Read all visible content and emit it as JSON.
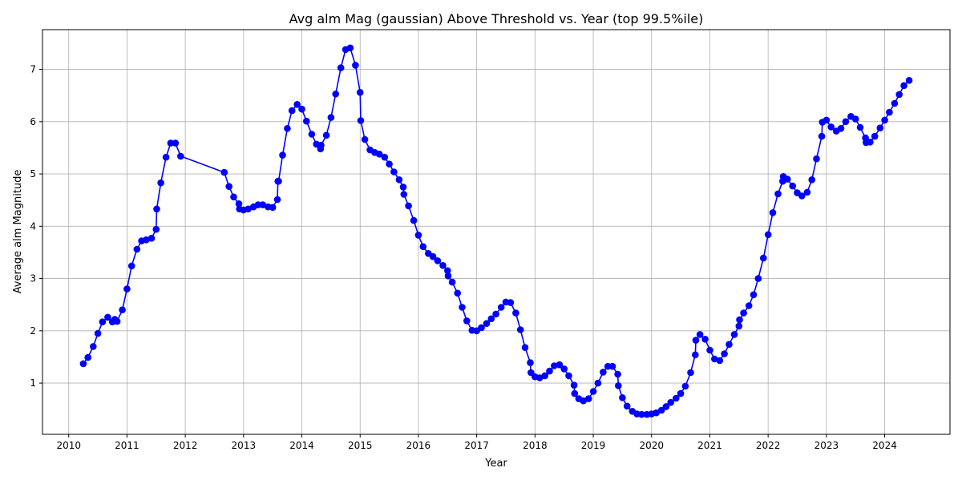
{
  "chart_data": {
    "type": "line",
    "title": "Avg alm Mag (gaussian) Above Threshold vs. Year (top 99.5%ile)",
    "xlabel": "Year",
    "ylabel": "Average alm Magnitude",
    "xlim": [
      2009.55,
      2025.12
    ],
    "ylim": [
      0.02,
      7.76
    ],
    "xticks": [
      2010,
      2011,
      2012,
      2013,
      2014,
      2015,
      2016,
      2017,
      2018,
      2019,
      2020,
      2021,
      2022,
      2023,
      2024
    ],
    "xtick_labels": [
      "2010",
      "2011",
      "2012",
      "2013",
      "2014",
      "2015",
      "2016",
      "2017",
      "2018",
      "2019",
      "2020",
      "2021",
      "2022",
      "2023",
      "2024"
    ],
    "yticks": [
      1,
      2,
      3,
      4,
      5,
      6,
      7
    ],
    "ytick_labels": [
      "1",
      "2",
      "3",
      "4",
      "5",
      "6",
      "7"
    ],
    "grid": true,
    "color": "#0000ff",
    "marker": "circle",
    "series": [
      {
        "name": "",
        "x": [
          2010.25,
          2010.33,
          2010.42,
          2010.5,
          2010.58,
          2010.67,
          2010.75,
          2010.79,
          2010.83,
          2010.92,
          2011.0,
          2011.08,
          2011.17,
          2011.25,
          2011.33,
          2011.42,
          2011.5,
          2011.51,
          2011.58,
          2011.67,
          2011.75,
          2011.83,
          2011.92,
          2012.67,
          2012.75,
          2012.83,
          2012.92,
          2012.93,
          2013.0,
          2013.08,
          2013.17,
          2013.25,
          2013.33,
          2013.42,
          2013.5,
          2013.58,
          2013.59,
          2013.6,
          2013.67,
          2013.75,
          2013.83,
          2013.92,
          2014.0,
          2014.08,
          2014.17,
          2014.25,
          2014.32,
          2014.33,
          2014.42,
          2014.5,
          2014.58,
          2014.67,
          2014.75,
          2014.83,
          2014.92,
          2015.0,
          2015.01,
          2015.08,
          2015.17,
          2015.25,
          2015.33,
          2015.42,
          2015.5,
          2015.58,
          2015.67,
          2015.74,
          2015.75,
          2015.83,
          2015.92,
          2016.0,
          2016.08,
          2016.17,
          2016.25,
          2016.33,
          2016.42,
          2016.5,
          2016.51,
          2016.58,
          2016.67,
          2016.75,
          2016.83,
          2016.92,
          2017.0,
          2017.08,
          2017.17,
          2017.25,
          2017.33,
          2017.42,
          2017.5,
          2017.58,
          2017.67,
          2017.75,
          2017.83,
          2017.92,
          2017.93,
          2018.0,
          2018.08,
          2018.17,
          2018.25,
          2018.33,
          2018.42,
          2018.5,
          2018.58,
          2018.67,
          2018.68,
          2018.75,
          2018.83,
          2018.92,
          2019.0,
          2019.08,
          2019.17,
          2019.25,
          2019.33,
          2019.42,
          2019.43,
          2019.5,
          2019.58,
          2019.67,
          2019.75,
          2019.83,
          2019.92,
          2020.0,
          2020.08,
          2020.17,
          2020.25,
          2020.33,
          2020.42,
          2020.5,
          2020.58,
          2020.67,
          2020.75,
          2020.76,
          2020.83,
          2020.92,
          2021.0,
          2021.08,
          2021.17,
          2021.25,
          2021.33,
          2021.42,
          2021.5,
          2021.51,
          2021.58,
          2021.67,
          2021.75,
          2021.83,
          2021.92,
          2022.0,
          2022.08,
          2022.17,
          2022.25,
          2022.26,
          2022.33,
          2022.42,
          2022.5,
          2022.58,
          2022.67,
          2022.75,
          2022.83,
          2022.92,
          2022.93,
          2023.0,
          2023.08,
          2023.17,
          2023.25,
          2023.33,
          2023.42,
          2023.5,
          2023.58,
          2023.67,
          2023.68,
          2023.75,
          2023.83,
          2023.92,
          2024.0,
          2024.08,
          2024.17,
          2024.25,
          2024.33,
          2024.42
        ],
        "y": [
          1.37,
          1.49,
          1.7,
          1.95,
          2.17,
          2.26,
          2.17,
          2.22,
          2.18,
          2.4,
          2.8,
          3.24,
          3.56,
          3.72,
          3.74,
          3.77,
          3.94,
          4.33,
          4.83,
          5.32,
          5.59,
          5.59,
          5.34,
          5.03,
          4.76,
          4.56,
          4.43,
          4.33,
          4.31,
          4.33,
          4.37,
          4.41,
          4.41,
          4.37,
          4.36,
          4.51,
          4.86,
          4.86,
          5.36,
          5.87,
          6.21,
          6.33,
          6.24,
          6.01,
          5.76,
          5.57,
          5.48,
          5.55,
          5.74,
          6.08,
          6.53,
          7.03,
          7.38,
          7.41,
          7.08,
          6.56,
          6.02,
          5.66,
          5.46,
          5.41,
          5.38,
          5.32,
          5.19,
          5.04,
          4.89,
          4.75,
          4.61,
          4.39,
          4.11,
          3.83,
          3.61,
          3.48,
          3.42,
          3.34,
          3.25,
          3.15,
          3.05,
          2.93,
          2.72,
          2.45,
          2.19,
          2.01,
          2.0,
          2.06,
          2.14,
          2.23,
          2.32,
          2.45,
          2.55,
          2.54,
          2.34,
          2.02,
          1.68,
          1.39,
          1.2,
          1.12,
          1.1,
          1.14,
          1.23,
          1.33,
          1.35,
          1.27,
          1.14,
          0.96,
          0.8,
          0.7,
          0.66,
          0.7,
          0.84,
          1.0,
          1.21,
          1.32,
          1.32,
          1.17,
          0.95,
          0.72,
          0.56,
          0.46,
          0.41,
          0.4,
          0.4,
          0.41,
          0.43,
          0.48,
          0.55,
          0.63,
          0.71,
          0.8,
          0.94,
          1.2,
          1.54,
          1.82,
          1.93,
          1.84,
          1.63,
          1.46,
          1.43,
          1.56,
          1.74,
          1.93,
          2.09,
          2.21,
          2.34,
          2.48,
          2.69,
          3.0,
          3.39,
          3.84,
          4.26,
          4.62,
          4.86,
          4.95,
          4.9,
          4.77,
          4.64,
          4.58,
          4.65,
          4.89,
          5.29,
          5.72,
          5.99,
          6.03,
          5.9,
          5.82,
          5.87,
          6.0,
          6.1,
          6.05,
          5.89,
          5.69,
          5.6,
          5.61,
          5.72,
          5.88,
          6.03,
          6.18,
          6.35,
          6.52,
          6.69,
          6.79
        ]
      }
    ]
  }
}
